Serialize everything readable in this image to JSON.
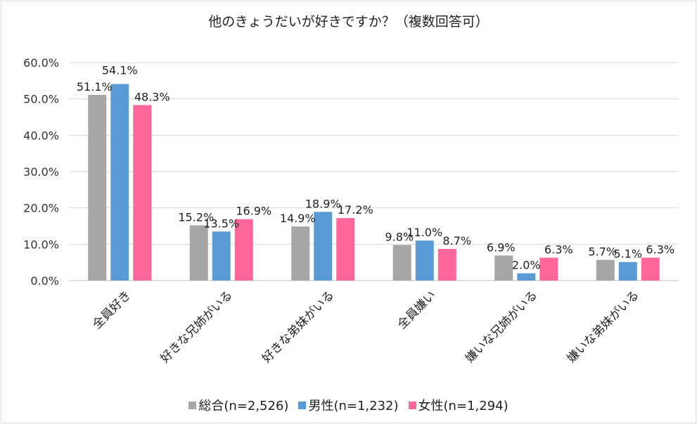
{
  "chart_data": {
    "type": "bar",
    "title": "他のきょうだいが好きですか？（複数回答可）",
    "categories": [
      "全員好き",
      "好きな兄姉がいる",
      "好きな弟妹がいる",
      "全員嫌い",
      "嫌いな兄姉がいる",
      "嫌いな弟妹がいる"
    ],
    "series": [
      {
        "name": "総合(n=2,526)",
        "color": "#a6a6a6",
        "values": [
          51.1,
          15.2,
          14.9,
          9.8,
          6.9,
          5.7
        ],
        "labels": [
          "51.1%",
          "15.2%",
          "14.9%",
          "9.8%",
          "6.9%",
          "5.7%"
        ]
      },
      {
        "name": "男性(n=1,232)",
        "color": "#5b9bd5",
        "values": [
          54.1,
          13.5,
          18.9,
          11.0,
          2.0,
          5.1
        ],
        "labels": [
          "54.1%",
          "13.5%",
          "18.9%",
          "11.0%",
          "2.0%",
          "5.1%"
        ]
      },
      {
        "name": "女性(n=1,294)",
        "color": "#ff6699",
        "values": [
          48.3,
          16.9,
          17.2,
          8.7,
          6.3,
          6.3
        ],
        "labels": [
          "48.3%",
          "16.9%",
          "17.2%",
          "8.7%",
          "6.3%",
          "6.3%"
        ]
      }
    ],
    "ylim": [
      0,
      60
    ],
    "yticks": [
      "0.0%",
      "10.0%",
      "20.0%",
      "30.0%",
      "40.0%",
      "50.0%",
      "60.0%"
    ],
    "grid": true,
    "legend_position": "bottom"
  }
}
